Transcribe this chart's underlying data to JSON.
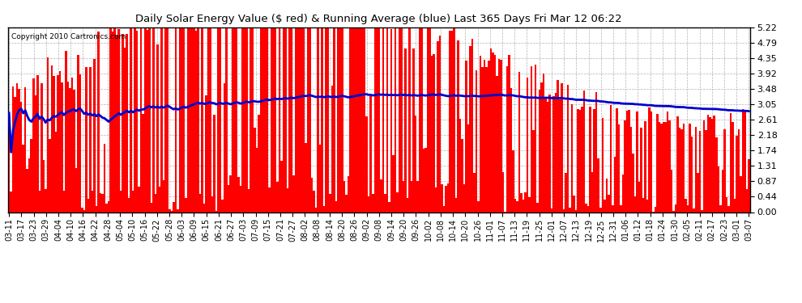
{
  "title": "Daily Solar Energy Value ($ red) & Running Average (blue) Last 365 Days Fri Mar 12 06:22",
  "copyright": "Copyright 2010 Cartronics.com",
  "bar_color": "#ff0000",
  "avg_color": "#0000cc",
  "background_color": "#ffffff",
  "grid_color": "#aaaaaa",
  "yticks": [
    0.0,
    0.44,
    0.87,
    1.31,
    1.74,
    2.18,
    2.61,
    3.05,
    3.48,
    3.92,
    4.35,
    4.79,
    5.22
  ],
  "ylim": [
    0.0,
    5.22
  ],
  "xtick_labels": [
    "03-11",
    "03-17",
    "03-23",
    "03-29",
    "04-04",
    "04-10",
    "04-16",
    "04-22",
    "04-28",
    "05-04",
    "05-10",
    "05-16",
    "05-22",
    "05-28",
    "06-03",
    "06-09",
    "06-15",
    "06-21",
    "06-27",
    "07-03",
    "07-09",
    "07-15",
    "07-21",
    "07-27",
    "08-02",
    "08-08",
    "08-14",
    "08-20",
    "08-26",
    "09-02",
    "09-08",
    "09-14",
    "09-20",
    "09-26",
    "10-02",
    "10-08",
    "10-14",
    "10-20",
    "10-26",
    "11-01",
    "11-07",
    "11-13",
    "11-19",
    "11-25",
    "12-01",
    "12-07",
    "12-13",
    "12-19",
    "12-25",
    "12-31",
    "01-06",
    "01-12",
    "01-18",
    "01-24",
    "01-30",
    "02-05",
    "02-11",
    "02-17",
    "02-23",
    "03-01",
    "03-07"
  ],
  "n_days": 365,
  "seed": 137,
  "fig_width": 9.9,
  "fig_height": 3.75,
  "dpi": 100
}
